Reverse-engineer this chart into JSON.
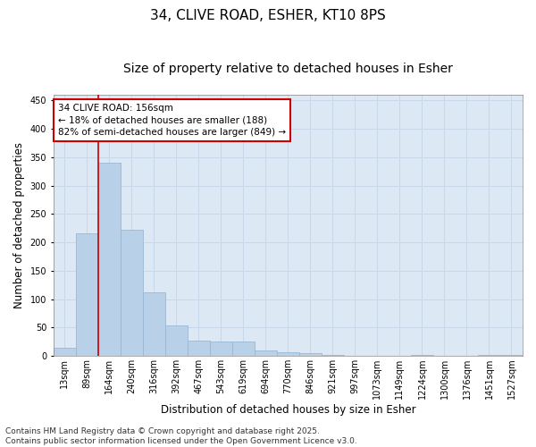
{
  "title_line1": "34, CLIVE ROAD, ESHER, KT10 8PS",
  "title_line2": "Size of property relative to detached houses in Esher",
  "xlabel": "Distribution of detached houses by size in Esher",
  "ylabel": "Number of detached properties",
  "categories": [
    "13sqm",
    "89sqm",
    "164sqm",
    "240sqm",
    "316sqm",
    "392sqm",
    "467sqm",
    "543sqm",
    "619sqm",
    "694sqm",
    "770sqm",
    "846sqm",
    "921sqm",
    "997sqm",
    "1073sqm",
    "1149sqm",
    "1224sqm",
    "1300sqm",
    "1376sqm",
    "1451sqm",
    "1527sqm"
  ],
  "values": [
    15,
    216,
    340,
    222,
    112,
    54,
    27,
    26,
    25,
    10,
    7,
    5,
    1,
    0,
    0,
    0,
    2,
    0,
    0,
    2,
    1
  ],
  "bar_color": "#b8d0e8",
  "bar_edge_color": "#9ab8d4",
  "vline_color": "#cc0000",
  "vline_index": 1.5,
  "annotation_text": "34 CLIVE ROAD: 156sqm\n← 18% of detached houses are smaller (188)\n82% of semi-detached houses are larger (849) →",
  "annotation_box_color": "#cc0000",
  "ylim": [
    0,
    460
  ],
  "yticks": [
    0,
    50,
    100,
    150,
    200,
    250,
    300,
    350,
    400,
    450
  ],
  "grid_color": "#c8d8e8",
  "background_color": "#dce8f4",
  "footer_text": "Contains HM Land Registry data © Crown copyright and database right 2025.\nContains public sector information licensed under the Open Government Licence v3.0.",
  "title_fontsize": 11,
  "subtitle_fontsize": 10,
  "label_fontsize": 8.5,
  "tick_fontsize": 7,
  "footer_fontsize": 6.5,
  "annotation_fontsize": 7.5
}
